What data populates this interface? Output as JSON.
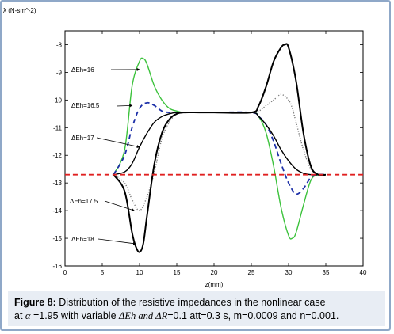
{
  "chart_data": {
    "type": "line",
    "ylabel": "λ (N-sm^-2)",
    "xlabel": "z(mm)",
    "xlim": [
      0,
      40
    ],
    "ylim": [
      -16,
      -7.5
    ],
    "xticks": [
      0,
      5,
      10,
      15,
      20,
      25,
      30,
      35,
      40
    ],
    "yticks": [
      -8,
      -9,
      -10,
      -11,
      -12,
      -13,
      -14,
      -15,
      -16
    ],
    "grid": false,
    "series": [
      {
        "name": "ΔEh=16",
        "color": "#3cc23c",
        "dash": "solid",
        "x": [
          6.5,
          8,
          9,
          10,
          10.5,
          11,
          12,
          13,
          14,
          15,
          16,
          18,
          20,
          25,
          26,
          27,
          28,
          29,
          30,
          30.5,
          31,
          32,
          33,
          34,
          35
        ],
        "y": [
          -12.7,
          -11.8,
          -9.5,
          -8.6,
          -8.5,
          -8.7,
          -9.5,
          -10.0,
          -10.3,
          -10.4,
          -10.45,
          -10.45,
          -10.45,
          -10.45,
          -10.6,
          -11.2,
          -12.4,
          -13.9,
          -14.9,
          -15.0,
          -14.8,
          -13.8,
          -12.9,
          -12.7,
          -12.7
        ]
      },
      {
        "name": "ΔEh=16.5",
        "color": "#1c2fa8",
        "dash": "dashed",
        "x": [
          6.5,
          8,
          9,
          10,
          11,
          12,
          13,
          14,
          15,
          16,
          20,
          25,
          26,
          27,
          28,
          29,
          30,
          31,
          32,
          33,
          34,
          35
        ],
        "y": [
          -12.7,
          -12.0,
          -11.0,
          -10.3,
          -10.1,
          -10.2,
          -10.4,
          -10.45,
          -10.45,
          -10.45,
          -10.45,
          -10.45,
          -10.6,
          -10.9,
          -11.5,
          -12.3,
          -13.0,
          -13.4,
          -13.2,
          -12.8,
          -12.7,
          -12.7
        ]
      },
      {
        "name": "ΔEh=17",
        "color": "#000000",
        "dash": "solid",
        "x": [
          6.5,
          8,
          9,
          10,
          11,
          12,
          13,
          14,
          15,
          16,
          18,
          20,
          25,
          26,
          27,
          28,
          29,
          30,
          31,
          32,
          33,
          34,
          35
        ],
        "y": [
          -12.7,
          -12.6,
          -12.3,
          -11.7,
          -11.2,
          -10.8,
          -10.6,
          -10.5,
          -10.45,
          -10.45,
          -10.45,
          -10.45,
          -10.45,
          -10.6,
          -10.9,
          -11.3,
          -11.8,
          -12.2,
          -12.5,
          -12.65,
          -12.7,
          -12.7,
          -12.7
        ]
      },
      {
        "name": "ΔEh=17.5",
        "color": "#777777",
        "dash": "dotted",
        "x": [
          6.5,
          8,
          9,
          10,
          11,
          12,
          13,
          14,
          15,
          16,
          18,
          20,
          25,
          26,
          27,
          28,
          29,
          30,
          30.5,
          31,
          32,
          33,
          34,
          35
        ],
        "y": [
          -12.7,
          -13.0,
          -13.6,
          -14.0,
          -13.5,
          -12.6,
          -11.4,
          -10.8,
          -10.5,
          -10.45,
          -10.45,
          -10.45,
          -10.45,
          -10.4,
          -10.2,
          -10.0,
          -9.8,
          -10.0,
          -10.3,
          -10.8,
          -11.8,
          -12.5,
          -12.7,
          -12.7
        ]
      },
      {
        "name": "ΔEh=18",
        "color": "#000000",
        "dash": "solid",
        "width": 2,
        "x": [
          6.5,
          8,
          9,
          9.5,
          10,
          10.5,
          11,
          12,
          13,
          14,
          15,
          16,
          18,
          20,
          25,
          26,
          27,
          28,
          29,
          29.5,
          30,
          31,
          32,
          33,
          34,
          35
        ],
        "y": [
          -12.7,
          -13.3,
          -14.8,
          -15.3,
          -15.5,
          -15.2,
          -14.2,
          -12.3,
          -11.2,
          -10.7,
          -10.5,
          -10.45,
          -10.45,
          -10.45,
          -10.45,
          -10.2,
          -9.5,
          -8.6,
          -8.1,
          -8.0,
          -8.1,
          -9.3,
          -11.2,
          -12.4,
          -12.7,
          -12.7
        ]
      },
      {
        "name": "",
        "color": "#e02020",
        "dash": "dashed",
        "x": [
          0,
          7,
          34,
          40
        ],
        "y": [
          -12.7,
          -12.7,
          -12.7,
          -12.7
        ]
      }
    ],
    "annotations": [
      {
        "text": "ΔEh=16",
        "arrow_to": [
          10,
          -8.9
        ]
      },
      {
        "text": "ΔEh=16.5",
        "arrow_to": [
          9,
          -10.2
        ]
      },
      {
        "text": "ΔEh=17",
        "arrow_to": [
          10,
          -11.7
        ]
      },
      {
        "text": "ΔEh=17.5",
        "arrow_to": [
          9.3,
          -14.0
        ]
      },
      {
        "text": "ΔEh=18",
        "arrow_to": [
          9.5,
          -15.2
        ]
      }
    ]
  },
  "caption": {
    "label": "Figure 8:",
    "text_line1": "Distribution of the resistive impedances in the nonlinear case",
    "text_line2_prefix": "at ",
    "alpha_symbol": "α",
    "text_line2_mid": " =1.95 with variable ",
    "delta_eh": "ΔEh",
    "and_word": " and ",
    "delta_r": "ΔR",
    "text_line2_suffix": "=0.1 att=0.3 s, m=0.0009 and n=0.001."
  }
}
